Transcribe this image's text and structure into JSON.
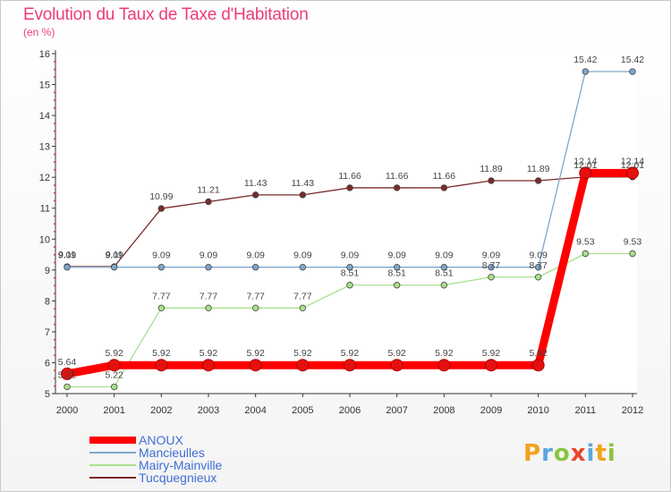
{
  "header": {
    "title": "Evolution du Taux de Taxe d'Habitation",
    "subtitle": "(en %)"
  },
  "chart_data": {
    "type": "line",
    "x": [
      "2000",
      "2001",
      "2002",
      "2003",
      "2004",
      "2005",
      "2006",
      "2007",
      "2008",
      "2009",
      "2010",
      "2011",
      "2012"
    ],
    "ylim": [
      5,
      16
    ],
    "yticks": [
      5,
      6,
      7,
      8,
      9,
      10,
      11,
      12,
      13,
      14,
      15,
      16
    ],
    "legend_position": "bottom-left",
    "series": [
      {
        "name": "ANOUX",
        "color": "#ff0000",
        "values": [
          5.64,
          5.92,
          5.92,
          5.92,
          5.92,
          5.92,
          5.92,
          5.92,
          5.92,
          5.92,
          5.92,
          12.14,
          12.14
        ],
        "labels": [
          "5.64",
          "5.92",
          "5.92",
          "5.92",
          "5.92",
          "5.92",
          "5.92",
          "5.92",
          "5.92",
          "5.92",
          "5.92",
          "12.14",
          "12.14"
        ]
      },
      {
        "name": "Mancieulles",
        "color": "#7fa6cc",
        "values": [
          9.09,
          9.09,
          9.09,
          9.09,
          9.09,
          9.09,
          9.09,
          9.09,
          9.09,
          9.09,
          9.09,
          15.42,
          15.42
        ],
        "labels": [
          "9.09",
          "9.09",
          "9.09",
          "9.09",
          "9.09",
          "9.09",
          "9.09",
          "9.09",
          "9.09",
          "9.09",
          "9.09",
          "15.42",
          "15.42"
        ]
      },
      {
        "name": "Mairy-Mainville",
        "color": "#a8e08a",
        "values": [
          5.22,
          5.22,
          7.77,
          7.77,
          7.77,
          7.77,
          8.51,
          8.51,
          8.51,
          8.77,
          8.77,
          9.53,
          9.53
        ],
        "labels": [
          "5.22",
          "5.22",
          "7.77",
          "7.77",
          "7.77",
          "7.77",
          "8.51",
          "8.51",
          "8.51",
          "8.77",
          "8.77",
          "9.53",
          "9.53"
        ]
      },
      {
        "name": "Tucquegnieux",
        "color": "#7a2a2a",
        "values": [
          9.11,
          9.11,
          10.99,
          11.21,
          11.43,
          11.43,
          11.66,
          11.66,
          11.66,
          11.89,
          11.89,
          12.01,
          12.01
        ],
        "labels": [
          "9.11",
          "9.11",
          "10.99",
          "11.21",
          "11.43",
          "11.43",
          "11.66",
          "11.66",
          "11.66",
          "11.89",
          "11.89",
          "12.01",
          "12.01"
        ]
      }
    ]
  },
  "logo": {
    "letters": [
      "P",
      "r",
      "o",
      "x",
      "i",
      "t",
      "i"
    ],
    "colors": [
      "#f2a21b",
      "#5aa6e0",
      "#8bc53f",
      "#e9452b",
      "#5aa6e0",
      "#f2a21b",
      "#8bc53f"
    ]
  }
}
